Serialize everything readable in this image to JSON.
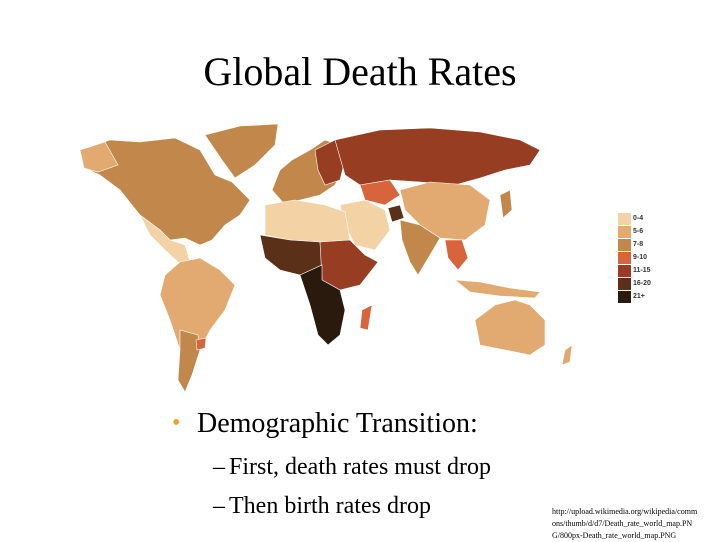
{
  "title": "Global Death Rates",
  "legend": [
    {
      "label": "0-4",
      "color": "#f3d2a5"
    },
    {
      "label": "5-6",
      "color": "#e2aa70"
    },
    {
      "label": "7-8",
      "color": "#c2884b"
    },
    {
      "label": "9-10",
      "color": "#d8643b"
    },
    {
      "label": "11-15",
      "color": "#963d22"
    },
    {
      "label": "16-20",
      "color": "#5a3019"
    },
    {
      "label": "21+",
      "color": "#2a1a0e"
    }
  ],
  "bullets": [
    {
      "text": "Demographic Transition:",
      "sub": [
        "First, death rates must drop",
        "Then birth rates drop"
      ]
    }
  ],
  "source": "http://upload.wikimedia.org/wikipedia/commons/thumb/d/d7/Death_rate_world_map.PNG/800px-Death_rate_world_map.PNG"
}
